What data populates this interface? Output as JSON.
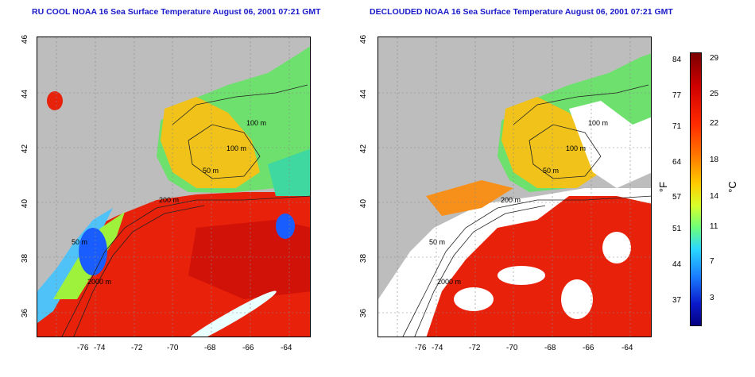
{
  "left_panel": {
    "title": "RU COOL NOAA 16 Sea Surface Temperature August 06, 2001 07:21 GMT",
    "contour_labels": [
      "100 m",
      "100 m",
      "50 m",
      "200 m",
      "50 m",
      "2000 m"
    ]
  },
  "right_panel": {
    "title": "DECLOUDED NOAA 16 Sea Surface Temperature August 06, 2001 07:21 GMT",
    "contour_labels": [
      "100 m",
      "100 m",
      "50 m",
      "200 m",
      "50 m",
      "2000 m"
    ]
  },
  "axes": {
    "x_ticks": [
      "-76",
      "-74",
      "-72",
      "-70",
      "-68",
      "-66",
      "-64"
    ],
    "y_ticks": [
      "46",
      "44",
      "42",
      "40",
      "38",
      "36"
    ]
  },
  "colorbar": {
    "unit_left": "°F",
    "unit_right": "°C",
    "f_ticks": [
      "84",
      "77",
      "71",
      "64",
      "57",
      "51",
      "44",
      "37"
    ],
    "c_ticks": [
      "29",
      "25",
      "22",
      "18",
      "14",
      "11",
      "7",
      "3"
    ]
  },
  "colors": {
    "land": "#bdbdbd",
    "cloud": "#ffffff",
    "title": "#1a1ac8",
    "warm": "#e8210a",
    "cool": "#6dff7a"
  }
}
